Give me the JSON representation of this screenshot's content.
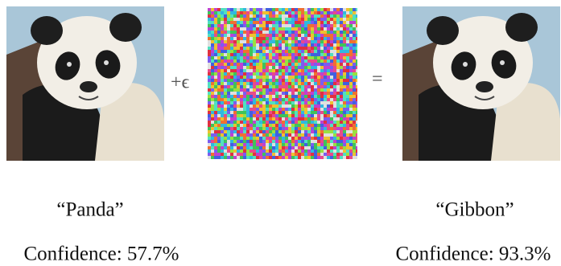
{
  "operator_plus": "+ϵ",
  "operator_equals": "=",
  "left": {
    "label": "“Panda”",
    "confidence": "Confidence: 57.7%"
  },
  "right": {
    "label": "“Gibbon”",
    "confidence": "Confidence: 93.3%"
  }
}
